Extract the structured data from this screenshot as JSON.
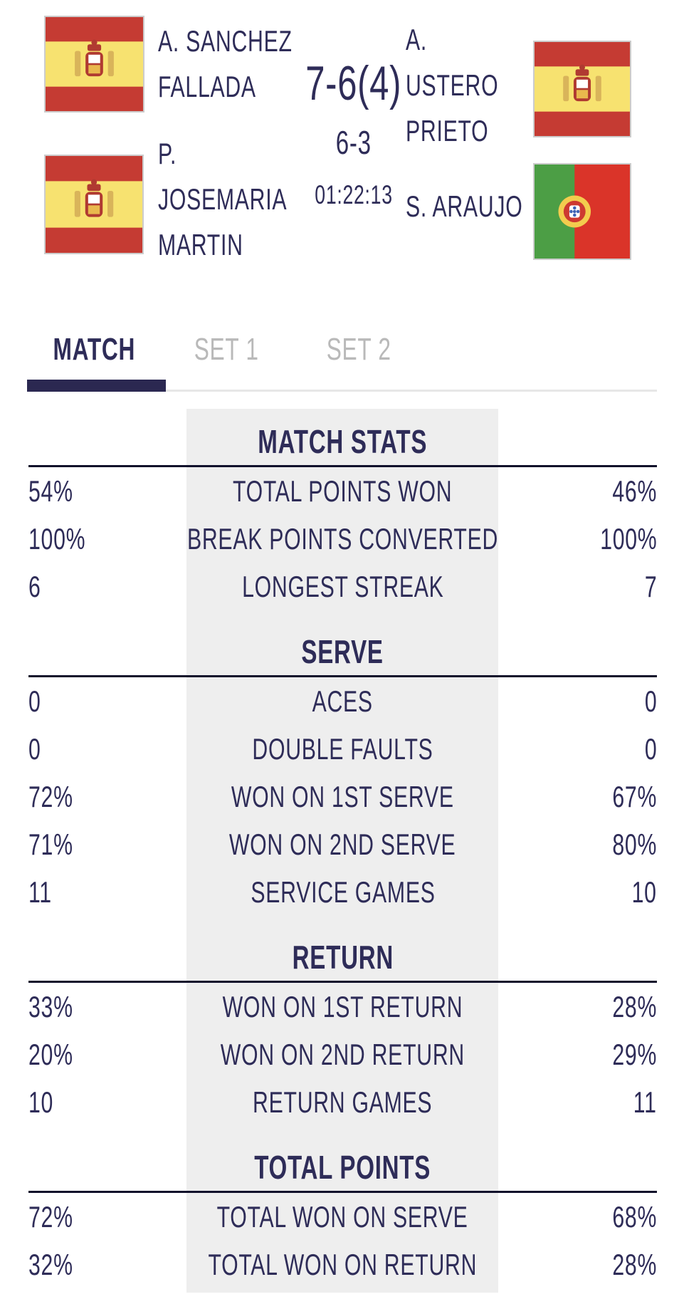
{
  "header": {
    "players": [
      {
        "name_lines": [
          "A. SANCHEZ",
          "FALLADA"
        ],
        "flag": "spain"
      },
      {
        "name_lines": [
          "P.",
          "JOSEMARIA",
          "MARTIN"
        ],
        "flag": "spain"
      },
      {
        "name_lines": [
          "A.",
          "USTERO",
          "PRIETO"
        ],
        "flag": "spain"
      },
      {
        "name_lines": [
          "S. ARAUJO"
        ],
        "flag": "portugal"
      }
    ],
    "score": {
      "set1": "7-6(4)",
      "set2": "6-3",
      "duration": "01:22:13"
    }
  },
  "tabs": [
    {
      "label": "MATCH",
      "active": true
    },
    {
      "label": "SET 1",
      "active": false
    },
    {
      "label": "SET 2",
      "active": false
    }
  ],
  "stats": {
    "sections": [
      {
        "title": "MATCH STATS",
        "rows": [
          {
            "left": "54%",
            "label": "TOTAL POINTS WON",
            "right": "46%"
          },
          {
            "left": "100%",
            "label": "BREAK POINTS CONVERTED",
            "right": "100%"
          },
          {
            "left": "6",
            "label": "LONGEST STREAK",
            "right": "7"
          }
        ]
      },
      {
        "title": "SERVE",
        "rows": [
          {
            "left": "0",
            "label": "ACES",
            "right": "0"
          },
          {
            "left": "0",
            "label": "DOUBLE FAULTS",
            "right": "0"
          },
          {
            "left": "72%",
            "label": "WON ON 1ST SERVE",
            "right": "67%"
          },
          {
            "left": "71%",
            "label": "WON ON 2ND SERVE",
            "right": "80%"
          },
          {
            "left": "11",
            "label": "SERVICE GAMES",
            "right": "10"
          }
        ]
      },
      {
        "title": "RETURN",
        "rows": [
          {
            "left": "33%",
            "label": "WON ON 1ST RETURN",
            "right": "28%"
          },
          {
            "left": "20%",
            "label": "WON ON 2ND RETURN",
            "right": "29%"
          },
          {
            "left": "10",
            "label": "RETURN GAMES",
            "right": "11"
          }
        ]
      },
      {
        "title": "TOTAL POINTS",
        "rows": [
          {
            "left": "72%",
            "label": "TOTAL WON ON SERVE",
            "right": "68%"
          },
          {
            "left": "32%",
            "label": "TOTAL WON ON RETURN",
            "right": "28%"
          }
        ]
      }
    ]
  },
  "colors": {
    "text_navy": "#2e2c58",
    "tab_inactive": "#b9b9b9",
    "tab_indicator": "#2b2851",
    "tab_track": "#e7e7e7",
    "stats_column_bg": "#eeeeee",
    "divider_line": "#10102b",
    "flag_border": "#cccccc",
    "spain_red": "#c53b33",
    "spain_yellow": "#f7e270",
    "portugal_green": "#4c9e45",
    "portugal_red": "#da3429"
  }
}
